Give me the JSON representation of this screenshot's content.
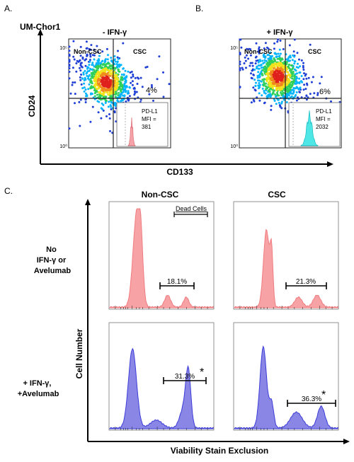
{
  "figure": {
    "panel_a_letter": "A.",
    "panel_b_letter": "B.",
    "panel_c_letter": "C.",
    "cell_line": "UM-Chor1",
    "x_axis_label": "CD133",
    "y_axis_label": "CD24",
    "cell_number_label": "Cell Number",
    "viability_label": "Viability Stain Exclusion"
  },
  "chart_data": [
    {
      "type": "scatter",
      "id": "A",
      "title": "- IFN-γ",
      "quadrant_labels": [
        "Non-CSC",
        "CSC"
      ],
      "csc_percent": "4%",
      "y_ticks": [
        "10⁵",
        "10⁰"
      ],
      "xlabel": "CD133",
      "ylabel": "CD24",
      "inset": {
        "type": "histogram",
        "label_lines": [
          "PD-L1",
          "MFI =",
          "381"
        ],
        "color": "#f5a3a8",
        "stroke": "#e06a73"
      },
      "dot_colors": [
        "#1f3fd6",
        "#00b4ff",
        "#2fd05a",
        "#f2e21c",
        "#f08a1c",
        "#e0201c"
      ]
    },
    {
      "type": "scatter",
      "id": "B",
      "title": "+ IFN-γ",
      "quadrant_labels": [
        "Non-CSC",
        "CSC"
      ],
      "csc_percent": "6%",
      "y_ticks": [
        "10⁵",
        "10⁰"
      ],
      "xlabel": "CD133",
      "ylabel": "CD24",
      "inset": {
        "type": "histogram",
        "label_lines": [
          "PD-L1",
          "MFI =",
          "2032"
        ],
        "color": "#4fe6e6",
        "stroke": "#1bbcc4"
      },
      "dot_colors": [
        "#1f3fd6",
        "#00b4ff",
        "#2fd05a",
        "#f2e21c",
        "#f08a1c",
        "#e0201c"
      ]
    },
    {
      "type": "histogram",
      "id": "C",
      "columns": [
        "Non-CSC",
        "CSC"
      ],
      "rows": [
        "No\nIFN-γ or\nAvelumab",
        "+ IFN-γ,\n+Avelumab"
      ],
      "dead_cells_label": "Dead Cells",
      "xlabel": "Viability Stain Exclusion",
      "ylabel": "Cell Number",
      "panels": [
        {
          "row": 0,
          "col": 0,
          "percent": "18.1%",
          "star": "",
          "color": "#f07b7f",
          "fill": "#f7a3a6"
        },
        {
          "row": 0,
          "col": 1,
          "percent": "21.3%",
          "star": "",
          "color": "#f07b7f",
          "fill": "#f7a3a6"
        },
        {
          "row": 1,
          "col": 0,
          "percent": "31.3%",
          "star": "*",
          "color": "#3d3dd8",
          "fill": "#8a86e6"
        },
        {
          "row": 1,
          "col": 1,
          "percent": "36.3%",
          "star": "*",
          "color": "#3d3dd8",
          "fill": "#8a86e6"
        }
      ]
    }
  ]
}
